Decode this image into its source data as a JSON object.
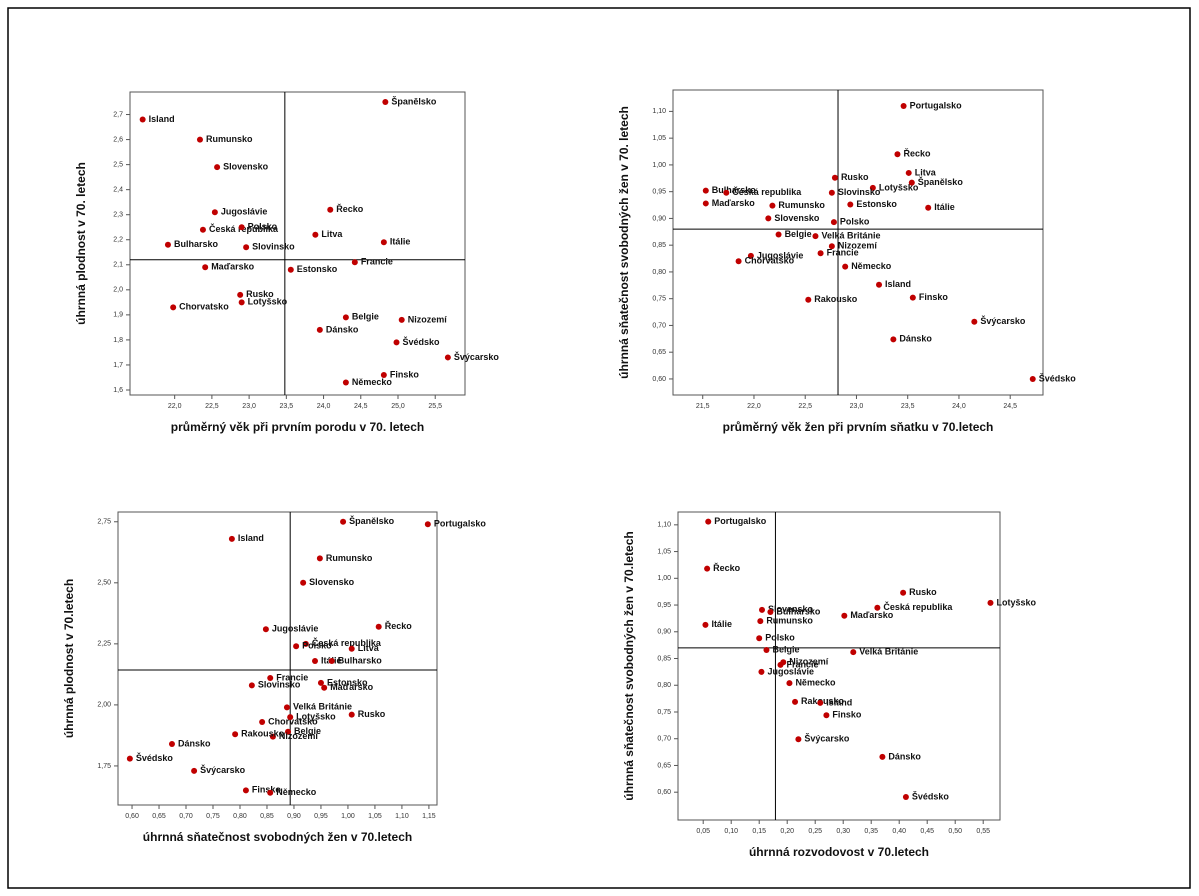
{
  "chart_data": [
    {
      "type": "scatter",
      "color": "#c00000",
      "x_label": "průměrný věk při prvním porodu v 70. letech",
      "y_label": "úhrnná plodnost v 70. letech",
      "labels": [
        "Island",
        "Španělsko",
        "Rumunsko",
        "Slovensko",
        "Jugoslávie",
        "Řecko",
        "Česká republika",
        "Polsko",
        "Litva",
        "Itálie",
        "Slovinsko",
        "Bulharsko",
        "Francie",
        "Maďarsko",
        "Estonsko",
        "Rusko",
        "Lotyšsko",
        "Chorvatsko",
        "Belgie",
        "Nizozemí",
        "Dánsko",
        "Švédsko",
        "Švýcarsko",
        "Finsko",
        "Německo"
      ],
      "x": [
        21.57,
        24.83,
        22.34,
        22.57,
        22.54,
        24.09,
        22.38,
        22.9,
        23.89,
        24.81,
        22.96,
        21.91,
        24.42,
        22.41,
        23.56,
        22.88,
        22.9,
        21.98,
        24.3,
        25.05,
        23.95,
        24.98,
        25.67,
        24.81,
        24.3
      ],
      "y": [
        2.68,
        2.75,
        2.6,
        2.49,
        2.31,
        2.32,
        2.24,
        2.25,
        2.22,
        2.19,
        2.17,
        2.18,
        2.11,
        2.09,
        2.08,
        1.98,
        1.95,
        1.93,
        1.89,
        1.88,
        1.84,
        1.79,
        1.73,
        1.66,
        1.63
      ],
      "xlim": [
        21.4,
        25.9
      ],
      "ylim": [
        1.58,
        2.79
      ],
      "xticks": [
        {
          "value": 22.0,
          "label": "22,0"
        },
        {
          "value": 22.5,
          "label": "22,5"
        },
        {
          "value": 23.0,
          "label": "23,0"
        },
        {
          "value": 23.5,
          "label": "23,5"
        },
        {
          "value": 24.0,
          "label": "24,0"
        },
        {
          "value": 24.5,
          "label": "24,5"
        },
        {
          "value": 25.0,
          "label": "25,0"
        },
        {
          "value": 25.5,
          "label": "25,5"
        }
      ],
      "yticks": [
        {
          "value": 1.6,
          "label": "1,6"
        },
        {
          "value": 1.7,
          "label": "1,7"
        },
        {
          "value": 1.8,
          "label": "1,8"
        },
        {
          "value": 1.9,
          "label": "1,9"
        },
        {
          "value": 2.0,
          "label": "2,0"
        },
        {
          "value": 2.1,
          "label": "2,1"
        },
        {
          "value": 2.2,
          "label": "2,2"
        },
        {
          "value": 2.3,
          "label": "2,3"
        },
        {
          "value": 2.4,
          "label": "2,4"
        },
        {
          "value": 2.5,
          "label": "2,5"
        },
        {
          "value": 2.6,
          "label": "2,6"
        },
        {
          "value": 2.7,
          "label": "2,7"
        }
      ],
      "reference_lines": {
        "x": 23.48,
        "y": 2.12
      }
    },
    {
      "type": "scatter",
      "color": "#c00000",
      "x_label": "průměrný věk žen při prvním sňatku v 70.letech",
      "y_label": "úhrnná sňatečnost svobodných žen v 70. letech",
      "labels": [
        "Portugalsko",
        "Řecko",
        "Litva",
        "Rusko",
        "Lotyšsko",
        "Španělsko",
        "Bulharsko",
        "Česká republika",
        "Slovinsko",
        "Maďarsko",
        "Rumunsko",
        "Estonsko",
        "Itálie",
        "Slovensko",
        "Polsko",
        "Belgie",
        "Velká Británie",
        "Nizozemí",
        "Jugoslávie",
        "Francie",
        "Chorvatsko",
        "Německo",
        "Island",
        "Finsko",
        "Rakousko",
        "Švýcarsko",
        "Dánsko",
        "Švédsko"
      ],
      "x": [
        23.46,
        23.4,
        23.51,
        22.79,
        23.16,
        23.54,
        21.53,
        21.73,
        22.76,
        21.53,
        22.18,
        22.94,
        23.7,
        22.14,
        22.78,
        22.24,
        22.6,
        22.76,
        21.97,
        22.65,
        21.85,
        22.89,
        23.22,
        23.55,
        22.53,
        24.15,
        23.36,
        24.72
      ],
      "y": [
        1.11,
        1.02,
        0.985,
        0.976,
        0.957,
        0.967,
        0.952,
        0.948,
        0.948,
        0.928,
        0.924,
        0.926,
        0.92,
        0.9,
        0.893,
        0.87,
        0.867,
        0.848,
        0.83,
        0.835,
        0.82,
        0.81,
        0.776,
        0.752,
        0.748,
        0.707,
        0.674,
        0.6
      ],
      "xlim": [
        21.21,
        24.82
      ],
      "ylim": [
        0.57,
        1.14
      ],
      "xticks": [
        {
          "value": 21.5,
          "label": "21,5"
        },
        {
          "value": 22.0,
          "label": "22,0"
        },
        {
          "value": 22.5,
          "label": "22,5"
        },
        {
          "value": 23.0,
          "label": "23,0"
        },
        {
          "value": 23.5,
          "label": "23,5"
        },
        {
          "value": 24.0,
          "label": "24,0"
        },
        {
          "value": 24.5,
          "label": "24,5"
        }
      ],
      "yticks": [
        {
          "value": 0.6,
          "label": "0,60"
        },
        {
          "value": 0.65,
          "label": "0,65"
        },
        {
          "value": 0.7,
          "label": "0,70"
        },
        {
          "value": 0.75,
          "label": "0,75"
        },
        {
          "value": 0.8,
          "label": "0,80"
        },
        {
          "value": 0.85,
          "label": "0,85"
        },
        {
          "value": 0.9,
          "label": "0,90"
        },
        {
          "value": 0.95,
          "label": "0,95"
        },
        {
          "value": 1.0,
          "label": "1,00"
        },
        {
          "value": 1.05,
          "label": "1,05"
        },
        {
          "value": 1.1,
          "label": "1,10"
        }
      ],
      "reference_lines": {
        "x": 22.82,
        "y": 0.88
      }
    },
    {
      "type": "scatter",
      "color": "#c00000",
      "x_label": "úhrnná sňatečnost svobodných žen v 70.letech",
      "y_label": "úhrnná plodnost v 70.letech",
      "labels": [
        "Španělsko",
        "Portugalsko",
        "Island",
        "Rumunsko",
        "Slovensko",
        "Řecko",
        "Jugoslávie",
        "Česká republika",
        "Polsko",
        "Litva",
        "Itálie",
        "Bulharsko",
        "Slovinsko",
        "Francie",
        "Estonsko",
        "Maďarsko",
        "Velká Británie",
        "Rusko",
        "Chorvatsko",
        "Lotyšsko",
        "Belgie",
        "Nizozemí",
        "Rakousko",
        "Dánsko",
        "Švédsko",
        "Švýcarsko",
        "Finsko",
        "Německo"
      ],
      "x": [
        0.991,
        1.148,
        0.785,
        0.948,
        0.917,
        1.057,
        0.848,
        0.922,
        0.904,
        1.007,
        0.939,
        0.97,
        0.822,
        0.856,
        0.95,
        0.956,
        0.887,
        1.007,
        0.841,
        0.893,
        0.889,
        0.861,
        0.791,
        0.674,
        0.596,
        0.715,
        0.811,
        0.856
      ],
      "y": [
        2.75,
        2.74,
        2.68,
        2.6,
        2.5,
        2.32,
        2.31,
        2.25,
        2.24,
        2.23,
        2.18,
        2.18,
        2.08,
        2.11,
        2.09,
        2.07,
        1.99,
        1.96,
        1.93,
        1.95,
        1.89,
        1.87,
        1.88,
        1.84,
        1.78,
        1.73,
        1.65,
        1.64
      ],
      "xlim": [
        0.574,
        1.165
      ],
      "ylim": [
        1.59,
        2.79
      ],
      "xticks": [
        {
          "value": 0.6,
          "label": "0,60"
        },
        {
          "value": 0.65,
          "label": "0,65"
        },
        {
          "value": 0.7,
          "label": "0,70"
        },
        {
          "value": 0.75,
          "label": "0,75"
        },
        {
          "value": 0.8,
          "label": "0,80"
        },
        {
          "value": 0.85,
          "label": "0,85"
        },
        {
          "value": 0.9,
          "label": "0,90"
        },
        {
          "value": 0.95,
          "label": "0,95"
        },
        {
          "value": 1.0,
          "label": "1,00"
        },
        {
          "value": 1.05,
          "label": "1,05"
        },
        {
          "value": 1.1,
          "label": "1,10"
        },
        {
          "value": 1.15,
          "label": "1,15"
        }
      ],
      "yticks": [
        {
          "value": 1.75,
          "label": "1,75"
        },
        {
          "value": 2.0,
          "label": "2,00"
        },
        {
          "value": 2.25,
          "label": "2,25"
        },
        {
          "value": 2.5,
          "label": "2,50"
        },
        {
          "value": 2.75,
          "label": "2,75"
        }
      ],
      "reference_lines": {
        "x": 0.893,
        "y": 2.143
      }
    },
    {
      "type": "scatter",
      "color": "#c00000",
      "x_label": "úhrnná rozvodovost v 70.letech",
      "y_label": "úhrnná sňatečnost svobodných žen v 70.letech",
      "labels": [
        "Portugalsko",
        "Řecko",
        "Rusko",
        "Lotyšsko",
        "Česká republika",
        "Slovensko",
        "Bulharsko",
        "Maďarsko",
        "Rumunsko",
        "Itálie",
        "Polsko",
        "Belgie",
        "Velká Británie",
        "Francie",
        "Jugoslávie",
        "Nizozemí",
        "Německo",
        "Rakousko",
        "Island",
        "Finsko",
        "Švýcarsko",
        "Dánsko",
        "Švédsko"
      ],
      "x": [
        0.059,
        0.057,
        0.407,
        0.563,
        0.361,
        0.155,
        0.17,
        0.302,
        0.152,
        0.054,
        0.15,
        0.163,
        0.318,
        0.188,
        0.154,
        0.193,
        0.204,
        0.214,
        0.259,
        0.27,
        0.22,
        0.37,
        0.412
      ],
      "y": [
        1.106,
        1.018,
        0.973,
        0.954,
        0.945,
        0.941,
        0.937,
        0.93,
        0.92,
        0.913,
        0.888,
        0.866,
        0.862,
        0.838,
        0.825,
        0.843,
        0.804,
        0.769,
        0.767,
        0.744,
        0.699,
        0.666,
        0.591
      ],
      "xlim": [
        0.005,
        0.58
      ],
      "ylim": [
        0.548,
        1.124
      ],
      "xticks": [
        {
          "value": 0.05,
          "label": "0,05"
        },
        {
          "value": 0.1,
          "label": "0,10"
        },
        {
          "value": 0.15,
          "label": "0,15"
        },
        {
          "value": 0.2,
          "label": "0,20"
        },
        {
          "value": 0.25,
          "label": "0,25"
        },
        {
          "value": 0.3,
          "label": "0,30"
        },
        {
          "value": 0.35,
          "label": "0,35"
        },
        {
          "value": 0.4,
          "label": "0,40"
        },
        {
          "value": 0.45,
          "label": "0,45"
        },
        {
          "value": 0.5,
          "label": "0,50"
        },
        {
          "value": 0.55,
          "label": "0,55"
        }
      ],
      "yticks": [
        {
          "value": 0.6,
          "label": "0,60"
        },
        {
          "value": 0.65,
          "label": "0,65"
        },
        {
          "value": 0.7,
          "label": "0,70"
        },
        {
          "value": 0.75,
          "label": "0,75"
        },
        {
          "value": 0.8,
          "label": "0,80"
        },
        {
          "value": 0.85,
          "label": "0,85"
        },
        {
          "value": 0.9,
          "label": "0,90"
        },
        {
          "value": 0.95,
          "label": "0,95"
        },
        {
          "value": 1.0,
          "label": "1,00"
        },
        {
          "value": 1.05,
          "label": "1,05"
        },
        {
          "value": 1.1,
          "label": "1,10"
        }
      ],
      "reference_lines": {
        "x": 0.179,
        "y": 0.87
      }
    }
  ]
}
